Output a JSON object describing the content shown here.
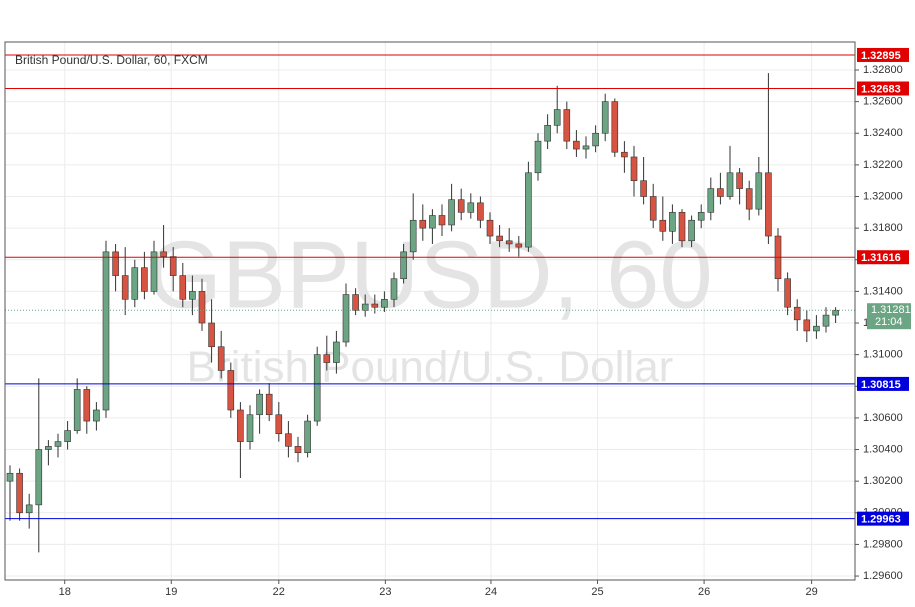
{
  "chart_data": {
    "type": "candlestick",
    "title": "British Pound/U.S. Dollar, 60, FXCM",
    "watermark": "GBPUSD, 60",
    "watermark_subtitle": "British Pound/U.S. Dollar",
    "up_color": "#6ba583",
    "down_color": "#d75442",
    "candles": {
      "open": [
        1.302,
        1.3025,
        1.3,
        1.3005,
        1.304,
        1.3042,
        1.3045,
        1.3052,
        1.3078,
        1.3058,
        1.3065,
        1.3165,
        1.315,
        1.3135,
        1.3155,
        1.314,
        1.3165,
        1.3162,
        1.315,
        1.3135,
        1.314,
        1.312,
        1.3105,
        1.309,
        1.3065,
        1.3045,
        1.3062,
        1.3075,
        1.3062,
        1.305,
        1.3042,
        1.3038,
        1.3058,
        1.31,
        1.3095,
        1.3108,
        1.3138,
        1.3128,
        1.3132,
        1.313,
        1.3135,
        1.3148,
        1.3165,
        1.3185,
        1.318,
        1.3188,
        1.3182,
        1.3198,
        1.319,
        1.3196,
        1.3185,
        1.3175,
        1.3172,
        1.317,
        1.3168,
        1.3215,
        1.3235,
        1.3245,
        1.3255,
        1.3235,
        1.323,
        1.3232,
        1.324,
        1.326,
        1.3228,
        1.3225,
        1.321,
        1.32,
        1.3185,
        1.3178,
        1.319,
        1.3172,
        1.3185,
        1.319,
        1.3205,
        1.32,
        1.3215,
        1.3205,
        1.3192,
        1.3215,
        1.3175,
        1.3148,
        1.313,
        1.3122,
        1.3115,
        1.3118,
        1.3125
      ],
      "high": [
        1.303,
        1.3028,
        1.3012,
        1.3085,
        1.3046,
        1.305,
        1.3058,
        1.3085,
        1.308,
        1.307,
        1.3172,
        1.317,
        1.3168,
        1.316,
        1.3165,
        1.3172,
        1.3182,
        1.3168,
        1.3158,
        1.315,
        1.3148,
        1.3135,
        1.3115,
        1.3095,
        1.307,
        1.3068,
        1.3078,
        1.3082,
        1.307,
        1.3058,
        1.3048,
        1.3062,
        1.3105,
        1.3112,
        1.3115,
        1.3145,
        1.3142,
        1.3138,
        1.3138,
        1.314,
        1.3152,
        1.317,
        1.3202,
        1.3195,
        1.3192,
        1.3195,
        1.3208,
        1.3205,
        1.3202,
        1.32,
        1.319,
        1.3182,
        1.318,
        1.3175,
        1.3222,
        1.324,
        1.3252,
        1.327,
        1.326,
        1.3242,
        1.3238,
        1.3245,
        1.3265,
        1.3262,
        1.3235,
        1.3232,
        1.3225,
        1.3208,
        1.32,
        1.3195,
        1.3192,
        1.3188,
        1.3195,
        1.3212,
        1.3215,
        1.3232,
        1.3218,
        1.321,
        1.3225,
        1.3278,
        1.318,
        1.3152,
        1.3135,
        1.3128,
        1.3125,
        1.313,
        1.313
      ],
      "low": [
        1.2995,
        1.2995,
        1.299,
        1.2975,
        1.303,
        1.3035,
        1.304,
        1.305,
        1.305,
        1.3052,
        1.306,
        1.314,
        1.3125,
        1.313,
        1.3135,
        1.3138,
        1.3155,
        1.314,
        1.313,
        1.3125,
        1.3115,
        1.3095,
        1.3085,
        1.306,
        1.3022,
        1.304,
        1.305,
        1.3058,
        1.3045,
        1.3035,
        1.3032,
        1.3035,
        1.3055,
        1.309,
        1.3088,
        1.3105,
        1.3125,
        1.3124,
        1.3126,
        1.3127,
        1.313,
        1.3145,
        1.316,
        1.3172,
        1.317,
        1.3175,
        1.3178,
        1.3185,
        1.3186,
        1.318,
        1.317,
        1.3168,
        1.3165,
        1.3162,
        1.3165,
        1.321,
        1.323,
        1.324,
        1.323,
        1.3225,
        1.3224,
        1.3228,
        1.3235,
        1.3225,
        1.3215,
        1.32,
        1.3195,
        1.318,
        1.3172,
        1.317,
        1.3168,
        1.3168,
        1.318,
        1.3185,
        1.3195,
        1.3198,
        1.3195,
        1.3185,
        1.3188,
        1.317,
        1.314,
        1.3125,
        1.3115,
        1.3108,
        1.311,
        1.3114,
        1.312
      ],
      "close": [
        1.3025,
        1.3,
        1.3005,
        1.304,
        1.3042,
        1.3045,
        1.3052,
        1.3078,
        1.3058,
        1.3065,
        1.3165,
        1.315,
        1.3135,
        1.3155,
        1.314,
        1.3165,
        1.3162,
        1.315,
        1.3135,
        1.314,
        1.312,
        1.3105,
        1.309,
        1.3065,
        1.3045,
        1.3062,
        1.3075,
        1.3062,
        1.305,
        1.3042,
        1.3038,
        1.3058,
        1.31,
        1.3095,
        1.3108,
        1.3138,
        1.3128,
        1.3132,
        1.313,
        1.3135,
        1.3148,
        1.3165,
        1.3185,
        1.318,
        1.3188,
        1.3182,
        1.3198,
        1.319,
        1.3196,
        1.3185,
        1.3175,
        1.3172,
        1.317,
        1.3168,
        1.3215,
        1.3235,
        1.3245,
        1.3255,
        1.3235,
        1.323,
        1.3232,
        1.324,
        1.326,
        1.3228,
        1.3225,
        1.321,
        1.32,
        1.3185,
        1.3178,
        1.319,
        1.3172,
        1.3185,
        1.319,
        1.3205,
        1.32,
        1.3215,
        1.3205,
        1.3192,
        1.3215,
        1.3175,
        1.3148,
        1.313,
        1.3122,
        1.3115,
        1.3118,
        1.3125,
        1.3128
      ]
    },
    "xlim": [
      -0.52,
      88.02
    ],
    "xticks": [
      {
        "value": 5.7,
        "label": "18"
      },
      {
        "value": 16.8,
        "label": "19"
      },
      {
        "value": 28,
        "label": "22"
      },
      {
        "value": 39.1,
        "label": "23"
      },
      {
        "value": 50.1,
        "label": "24"
      },
      {
        "value": 61.2,
        "label": "25"
      },
      {
        "value": 72.3,
        "label": "26"
      },
      {
        "value": 83.5,
        "label": "29"
      }
    ],
    "ylim": [
      1.29575,
      1.32977
    ],
    "yticks": [
      {
        "value": 1.296,
        "label": "1.29600"
      },
      {
        "value": 1.298,
        "label": "1.29800"
      },
      {
        "value": 1.3,
        "label": "1.30000"
      },
      {
        "value": 1.302,
        "label": "1.30200"
      },
      {
        "value": 1.304,
        "label": "1.30400"
      },
      {
        "value": 1.306,
        "label": "1.30600"
      },
      {
        "value": 1.308,
        "label": "1.30800"
      },
      {
        "value": 1.31,
        "label": "1.31000"
      },
      {
        "value": 1.312,
        "label": "1.31200"
      },
      {
        "value": 1.314,
        "label": "1.31400"
      },
      {
        "value": 1.316,
        "label": "1.31600"
      },
      {
        "value": 1.318,
        "label": "1.31800"
      },
      {
        "value": 1.32,
        "label": "1.32000"
      },
      {
        "value": 1.322,
        "label": "1.32200"
      },
      {
        "value": 1.324,
        "label": "1.32400"
      },
      {
        "value": 1.326,
        "label": "1.32600"
      },
      {
        "value": 1.328,
        "label": "1.32800"
      }
    ],
    "grid": true,
    "levels": [
      {
        "value": 1.32895,
        "color": "#e00000"
      },
      {
        "value": 1.32683,
        "color": "#e00000"
      },
      {
        "value": 1.31616,
        "color": "#e00000"
      },
      {
        "value": 1.30815,
        "color": "#0000dd"
      },
      {
        "value": 1.29963,
        "color": "#0000dd"
      }
    ],
    "last_price": 1.31281,
    "last_color": "#6ba583",
    "countdown": "21:04"
  }
}
